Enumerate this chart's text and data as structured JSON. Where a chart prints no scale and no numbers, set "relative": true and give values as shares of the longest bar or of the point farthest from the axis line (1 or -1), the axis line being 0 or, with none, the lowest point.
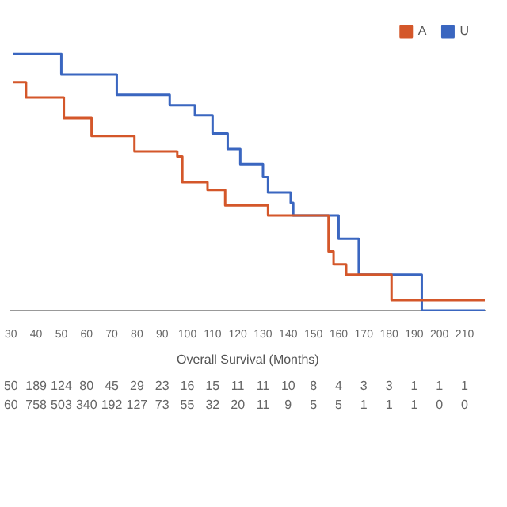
{
  "chart_data": {
    "type": "step",
    "xlabel": "Overall Survival (Months)",
    "xlim": [
      30,
      218
    ],
    "xticks": [
      30,
      40,
      50,
      60,
      70,
      80,
      90,
      100,
      110,
      120,
      130,
      140,
      150,
      160,
      170,
      180,
      190,
      200,
      210
    ],
    "relative": true,
    "legend": "top right",
    "series": [
      {
        "name": "A",
        "color": "#d4572a",
        "x": [
          31,
          36,
          51,
          62,
          79,
          96,
          98,
          108,
          115,
          132,
          156,
          158,
          163,
          181,
          218
        ],
        "values": [
          0.89,
          0.83,
          0.75,
          0.68,
          0.62,
          0.6,
          0.5,
          0.47,
          0.41,
          0.37,
          0.23,
          0.18,
          0.14,
          0.04,
          0.04
        ]
      },
      {
        "name": "U",
        "color": "#3a66c0",
        "x": [
          31,
          50,
          72,
          93,
          103,
          110,
          116,
          121,
          130,
          132,
          141,
          142,
          160,
          168,
          193,
          218
        ],
        "values": [
          1,
          0.92,
          0.84,
          0.8,
          0.76,
          0.69,
          0.63,
          0.57,
          0.52,
          0.46,
          0.42,
          0.37,
          0.28,
          0.14,
          0,
          0
        ]
      }
    ],
    "annotations": [
      "50 189 124 80 45 29 23 16 15 11 11 10 8 4 3 3 1 1 1",
      "60 758 503 340 192 127 73 55 32 20 11 9 5 5 1 1 1 0 0"
    ]
  }
}
